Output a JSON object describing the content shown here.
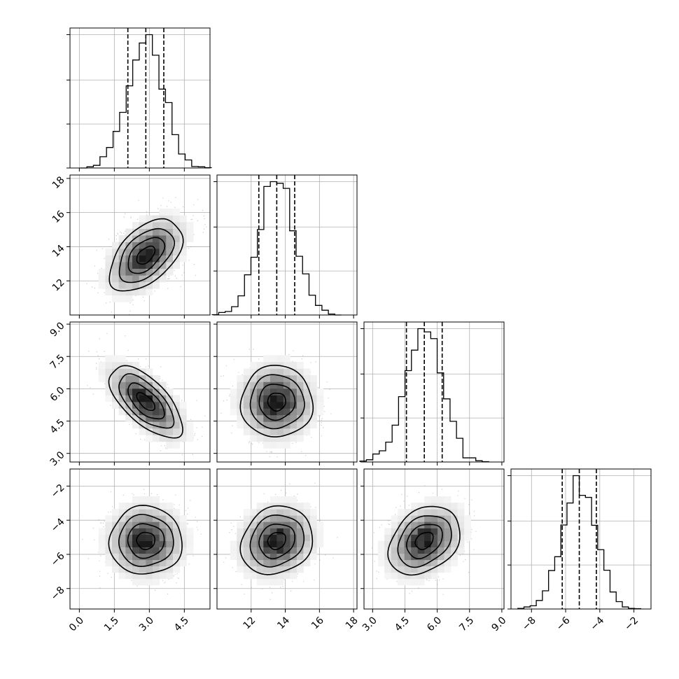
{
  "chart_data": {
    "type": "corner",
    "grid": true,
    "params": [
      {
        "ticks": [
          0.0,
          1.5,
          3.0,
          4.5
        ],
        "tick_labels": [
          "0.0",
          "1.5",
          "3.0",
          "4.5"
        ],
        "range": [
          -0.4,
          5.6
        ],
        "mean": 2.85,
        "sd": 0.78,
        "quantiles": [
          2.08,
          2.85,
          3.62
        ]
      },
      {
        "ticks": [
          12,
          14,
          16,
          18
        ],
        "tick_labels": [
          "12",
          "14",
          "16",
          "18"
        ],
        "range": [
          10.0,
          18.2
        ],
        "mean": 13.5,
        "sd": 1.05,
        "quantiles": [
          12.45,
          13.5,
          14.55
        ]
      },
      {
        "ticks": [
          3.0,
          4.5,
          6.0,
          7.5,
          9.0
        ],
        "tick_labels": [
          "3.0",
          "4.5",
          "6.0",
          "7.5",
          "9.0"
        ],
        "range": [
          2.6,
          9.1
        ],
        "mean": 5.4,
        "sd": 0.83,
        "quantiles": [
          4.57,
          5.4,
          6.23
        ]
      },
      {
        "ticks": [
          -8,
          -6,
          -4,
          -2
        ],
        "tick_labels": [
          "−8",
          "−6",
          "−4",
          "−2"
        ],
        "range": [
          -9.2,
          -1.0
        ],
        "mean": -5.2,
        "sd": 1.0,
        "quantiles": [
          -6.2,
          -5.2,
          -4.2
        ]
      }
    ],
    "correlations": [
      {
        "pair": [
          1,
          0
        ],
        "rho": 0.5
      },
      {
        "pair": [
          2,
          0
        ],
        "rho": -0.65
      },
      {
        "pair": [
          2,
          1
        ],
        "rho": 0.0
      },
      {
        "pair": [
          3,
          0
        ],
        "rho": 0.0
      },
      {
        "pair": [
          3,
          1
        ],
        "rho": 0.15
      },
      {
        "pair": [
          3,
          2
        ],
        "rho": 0.3
      }
    ],
    "histogram_bins": 20,
    "contour_levels_sigma": [
      0.5,
      1.0,
      1.5,
      2.0
    ]
  }
}
